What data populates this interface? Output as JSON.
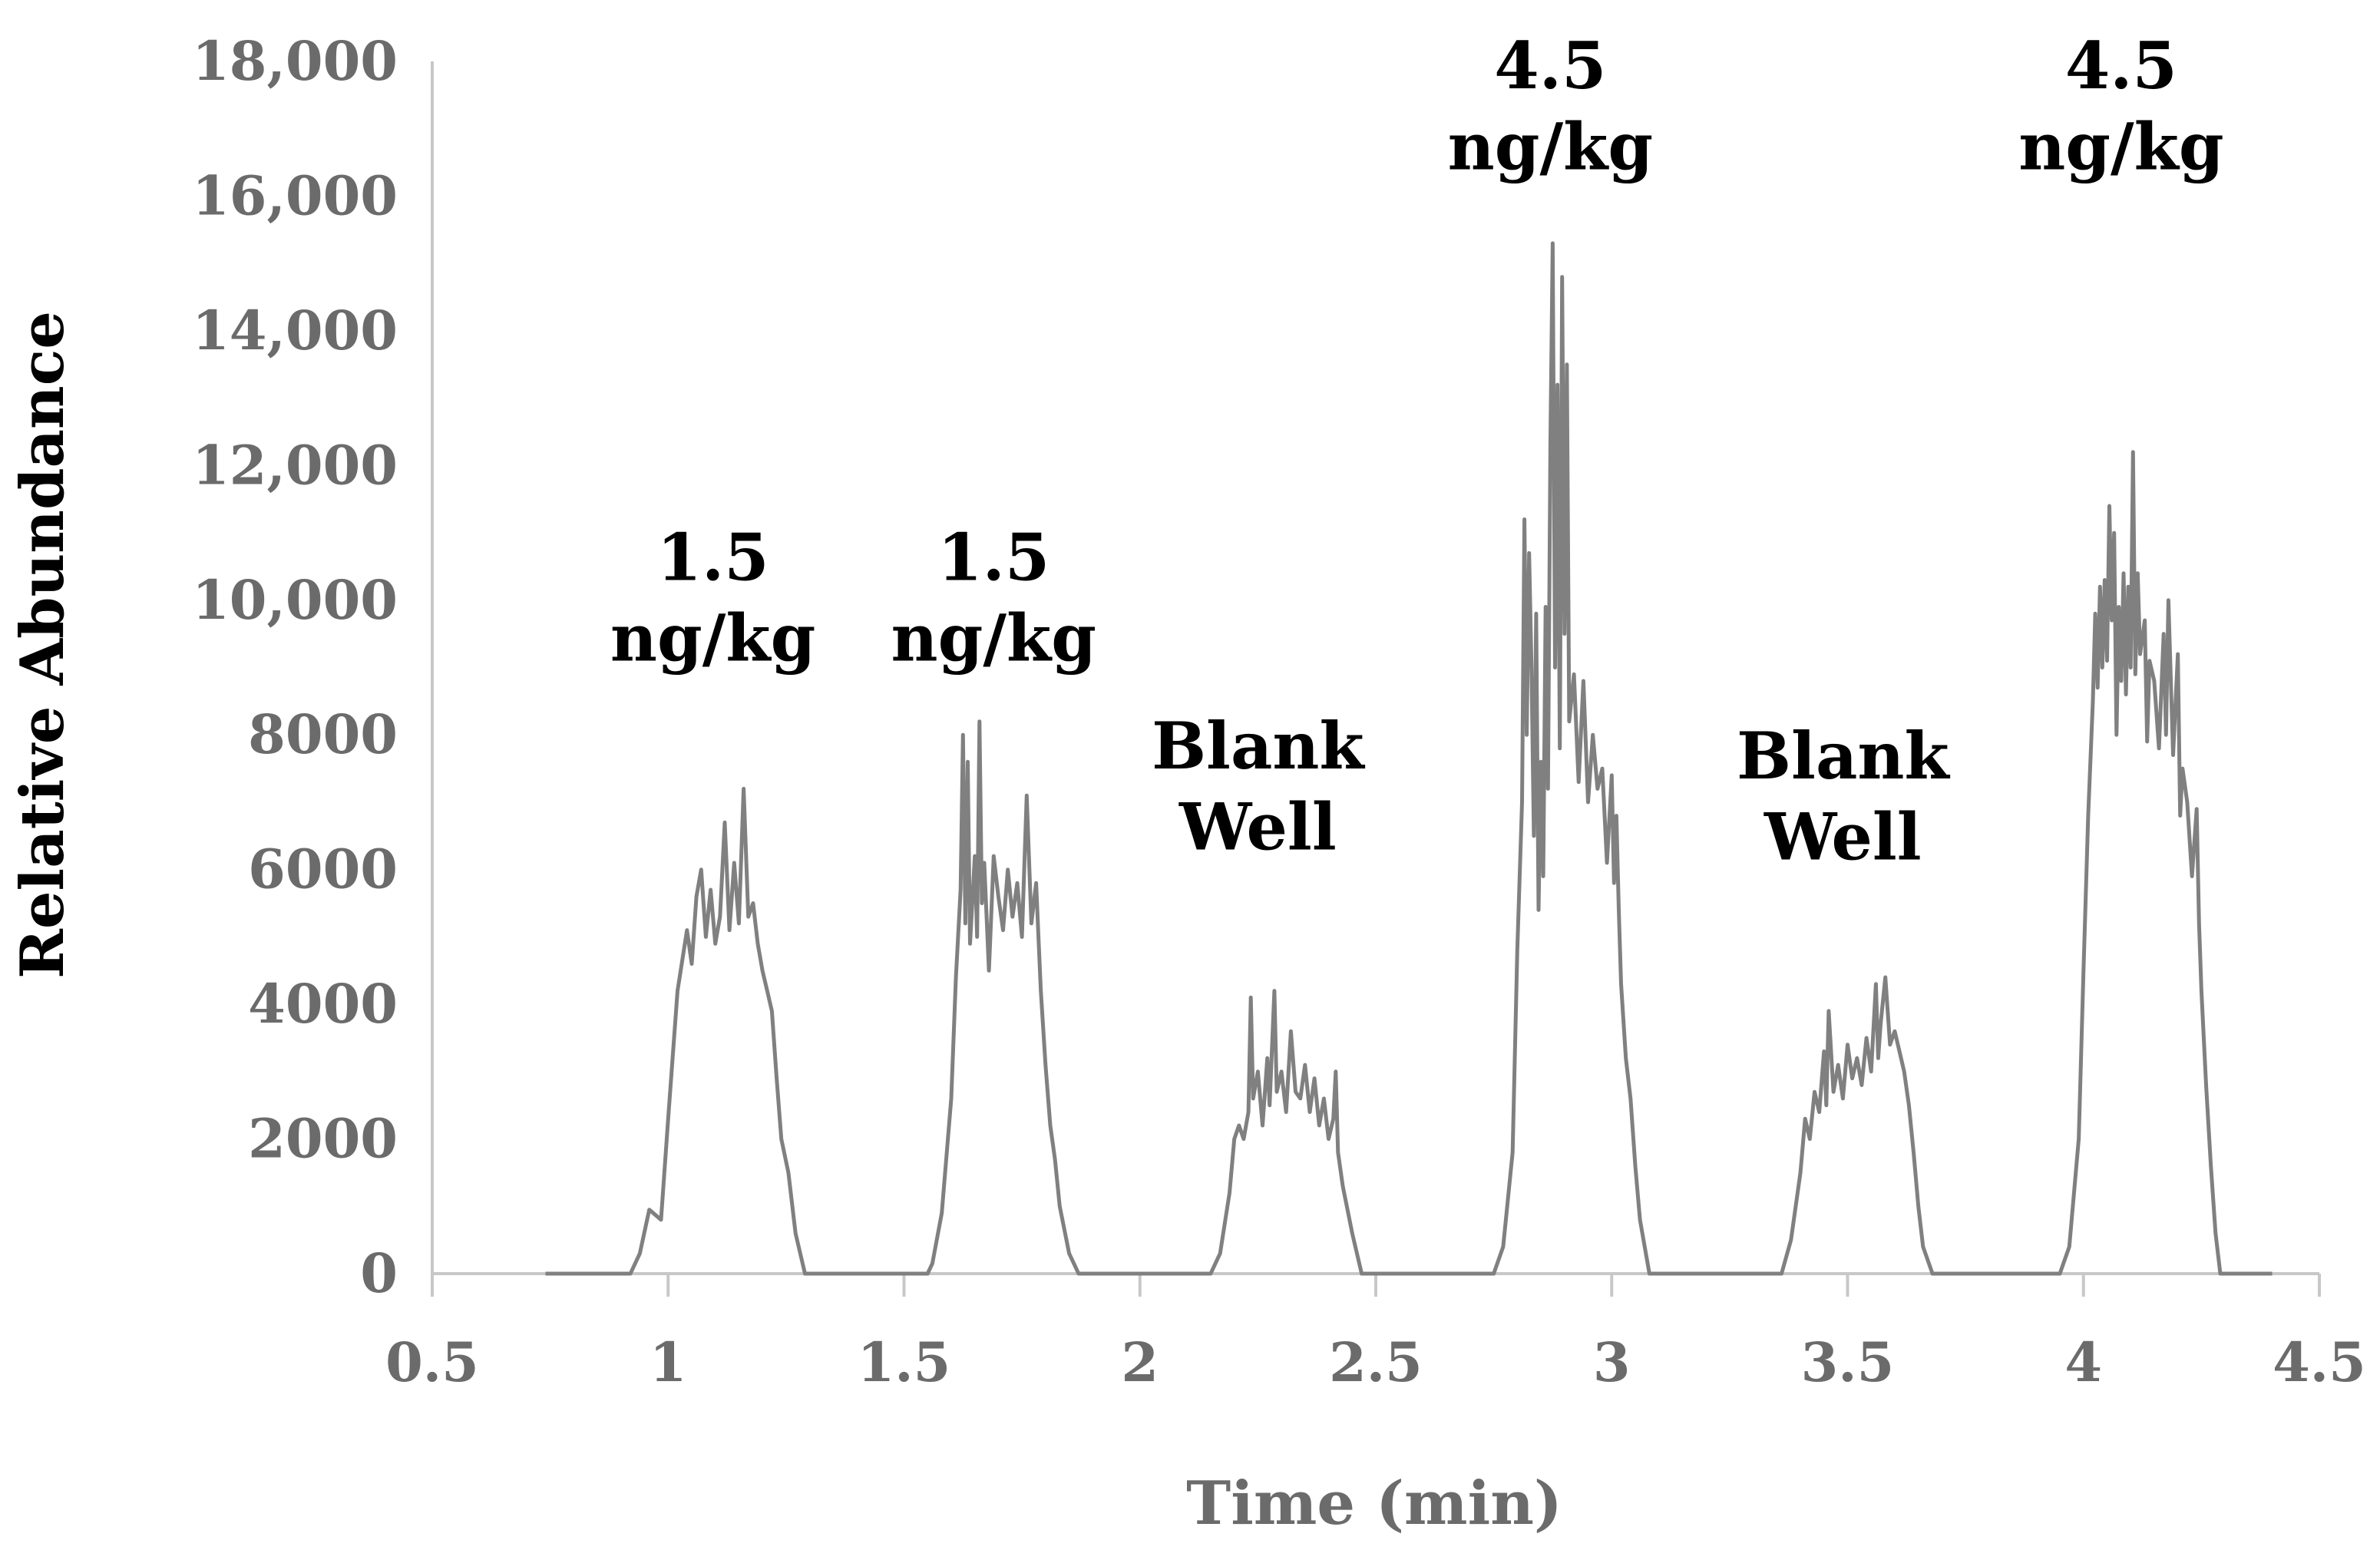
{
  "chart_data": {
    "type": "line",
    "title": "",
    "xlabel": "Time (min)",
    "ylabel": "Relative Abundance",
    "xlim": [
      0.5,
      4.5
    ],
    "ylim": [
      0,
      18000
    ],
    "xticks": [
      0.5,
      1,
      1.5,
      2,
      2.5,
      3,
      3.5,
      4,
      4.5
    ],
    "xtick_labels": [
      "0.5",
      "1",
      "1.5",
      "2",
      "2.5",
      "3",
      "3.5",
      "4",
      "4.5"
    ],
    "yticks": [
      0,
      2000,
      4000,
      6000,
      8000,
      10000,
      12000,
      14000,
      16000,
      18000
    ],
    "ytick_labels": [
      "0",
      "2000",
      "4000",
      "6000",
      "8000",
      "10,000",
      "12,000",
      "14,000",
      "16,000",
      "18,000"
    ],
    "grid": false,
    "series_color": "#808080",
    "series": [
      {
        "name": "Relative Abundance",
        "points": [
          [
            0.74,
            0
          ],
          [
            0.92,
            0
          ],
          [
            0.94,
            300
          ],
          [
            0.96,
            950
          ],
          [
            0.985,
            800
          ],
          [
            1.0,
            2300
          ],
          [
            1.02,
            4200
          ],
          [
            1.04,
            5100
          ],
          [
            1.05,
            4600
          ],
          [
            1.06,
            5600
          ],
          [
            1.07,
            6000
          ],
          [
            1.08,
            5000
          ],
          [
            1.09,
            5700
          ],
          [
            1.1,
            4900
          ],
          [
            1.11,
            5300
          ],
          [
            1.12,
            6700
          ],
          [
            1.13,
            5100
          ],
          [
            1.14,
            6100
          ],
          [
            1.15,
            5200
          ],
          [
            1.16,
            7200
          ],
          [
            1.17,
            5300
          ],
          [
            1.18,
            5500
          ],
          [
            1.19,
            4900
          ],
          [
            1.2,
            4500
          ],
          [
            1.21,
            4200
          ],
          [
            1.22,
            3900
          ],
          [
            1.23,
            2900
          ],
          [
            1.24,
            2000
          ],
          [
            1.255,
            1500
          ],
          [
            1.27,
            600
          ],
          [
            1.29,
            0
          ],
          [
            1.55,
            0
          ],
          [
            1.56,
            150
          ],
          [
            1.58,
            900
          ],
          [
            1.6,
            2600
          ],
          [
            1.61,
            4400
          ],
          [
            1.62,
            5700
          ],
          [
            1.625,
            8000
          ],
          [
            1.63,
            5200
          ],
          [
            1.635,
            7600
          ],
          [
            1.64,
            4900
          ],
          [
            1.65,
            6200
          ],
          [
            1.655,
            5000
          ],
          [
            1.66,
            8200
          ],
          [
            1.665,
            5500
          ],
          [
            1.67,
            6100
          ],
          [
            1.68,
            4500
          ],
          [
            1.69,
            6200
          ],
          [
            1.7,
            5600
          ],
          [
            1.71,
            5100
          ],
          [
            1.72,
            6000
          ],
          [
            1.73,
            5300
          ],
          [
            1.74,
            5800
          ],
          [
            1.75,
            5000
          ],
          [
            1.76,
            7100
          ],
          [
            1.77,
            5200
          ],
          [
            1.78,
            5800
          ],
          [
            1.785,
            5000
          ],
          [
            1.79,
            4200
          ],
          [
            1.8,
            3100
          ],
          [
            1.81,
            2200
          ],
          [
            1.82,
            1700
          ],
          [
            1.83,
            1000
          ],
          [
            1.85,
            300
          ],
          [
            1.87,
            0
          ],
          [
            2.15,
            0
          ],
          [
            2.17,
            300
          ],
          [
            2.19,
            1200
          ],
          [
            2.2,
            2000
          ],
          [
            2.21,
            2200
          ],
          [
            2.22,
            2000
          ],
          [
            2.23,
            2400
          ],
          [
            2.235,
            4100
          ],
          [
            2.24,
            2600
          ],
          [
            2.25,
            3000
          ],
          [
            2.26,
            2200
          ],
          [
            2.27,
            3200
          ],
          [
            2.275,
            2500
          ],
          [
            2.285,
            4200
          ],
          [
            2.29,
            2700
          ],
          [
            2.3,
            3000
          ],
          [
            2.31,
            2400
          ],
          [
            2.32,
            3600
          ],
          [
            2.33,
            2700
          ],
          [
            2.34,
            2600
          ],
          [
            2.35,
            3100
          ],
          [
            2.36,
            2400
          ],
          [
            2.37,
            2900
          ],
          [
            2.38,
            2200
          ],
          [
            2.39,
            2600
          ],
          [
            2.4,
            2000
          ],
          [
            2.41,
            2300
          ],
          [
            2.415,
            3000
          ],
          [
            2.42,
            1800
          ],
          [
            2.43,
            1300
          ],
          [
            2.45,
            600
          ],
          [
            2.47,
            0
          ],
          [
            2.75,
            0
          ],
          [
            2.77,
            400
          ],
          [
            2.79,
            1800
          ],
          [
            2.8,
            4800
          ],
          [
            2.81,
            7000
          ],
          [
            2.815,
            11200
          ],
          [
            2.82,
            8000
          ],
          [
            2.825,
            10700
          ],
          [
            2.83,
            9000
          ],
          [
            2.835,
            6500
          ],
          [
            2.84,
            9800
          ],
          [
            2.845,
            5400
          ],
          [
            2.85,
            7600
          ],
          [
            2.855,
            5900
          ],
          [
            2.86,
            9900
          ],
          [
            2.865,
            7200
          ],
          [
            2.87,
            12300
          ],
          [
            2.875,
            15300
          ],
          [
            2.88,
            9000
          ],
          [
            2.885,
            13200
          ],
          [
            2.89,
            7800
          ],
          [
            2.895,
            14800
          ],
          [
            2.9,
            9500
          ],
          [
            2.905,
            13500
          ],
          [
            2.91,
            8200
          ],
          [
            2.92,
            8900
          ],
          [
            2.93,
            7300
          ],
          [
            2.94,
            8800
          ],
          [
            2.95,
            7000
          ],
          [
            2.96,
            8000
          ],
          [
            2.97,
            7200
          ],
          [
            2.98,
            7500
          ],
          [
            2.99,
            6100
          ],
          [
            3.0,
            7400
          ],
          [
            3.005,
            5800
          ],
          [
            3.01,
            6800
          ],
          [
            3.015,
            5400
          ],
          [
            3.02,
            4300
          ],
          [
            3.03,
            3200
          ],
          [
            3.04,
            2600
          ],
          [
            3.05,
            1600
          ],
          [
            3.06,
            800
          ],
          [
            3.08,
            0
          ],
          [
            3.36,
            0
          ],
          [
            3.38,
            500
          ],
          [
            3.4,
            1500
          ],
          [
            3.41,
            2300
          ],
          [
            3.42,
            2000
          ],
          [
            3.43,
            2700
          ],
          [
            3.44,
            2400
          ],
          [
            3.45,
            3300
          ],
          [
            3.455,
            2500
          ],
          [
            3.46,
            3900
          ],
          [
            3.47,
            2700
          ],
          [
            3.48,
            3100
          ],
          [
            3.49,
            2600
          ],
          [
            3.5,
            3400
          ],
          [
            3.51,
            2900
          ],
          [
            3.52,
            3200
          ],
          [
            3.53,
            2800
          ],
          [
            3.54,
            3500
          ],
          [
            3.55,
            3000
          ],
          [
            3.56,
            4300
          ],
          [
            3.565,
            3200
          ],
          [
            3.57,
            3700
          ],
          [
            3.58,
            4400
          ],
          [
            3.59,
            3400
          ],
          [
            3.6,
            3600
          ],
          [
            3.61,
            3300
          ],
          [
            3.62,
            3000
          ],
          [
            3.63,
            2500
          ],
          [
            3.64,
            1800
          ],
          [
            3.65,
            1000
          ],
          [
            3.66,
            400
          ],
          [
            3.68,
            0
          ],
          [
            3.95,
            0
          ],
          [
            3.97,
            400
          ],
          [
            3.99,
            2000
          ],
          [
            4.0,
            4500
          ],
          [
            4.01,
            6800
          ],
          [
            4.02,
            8500
          ],
          [
            4.025,
            9800
          ],
          [
            4.03,
            8700
          ],
          [
            4.035,
            10200
          ],
          [
            4.04,
            9000
          ],
          [
            4.045,
            10300
          ],
          [
            4.05,
            9100
          ],
          [
            4.055,
            11400
          ],
          [
            4.06,
            9700
          ],
          [
            4.065,
            11000
          ],
          [
            4.07,
            8000
          ],
          [
            4.075,
            9900
          ],
          [
            4.08,
            8800
          ],
          [
            4.085,
            10400
          ],
          [
            4.09,
            8600
          ],
          [
            4.095,
            10200
          ],
          [
            4.1,
            9000
          ],
          [
            4.105,
            12200
          ],
          [
            4.11,
            8900
          ],
          [
            4.115,
            10400
          ],
          [
            4.12,
            9200
          ],
          [
            4.13,
            9700
          ],
          [
            4.135,
            7900
          ],
          [
            4.14,
            9100
          ],
          [
            4.15,
            8800
          ],
          [
            4.16,
            7800
          ],
          [
            4.17,
            9500
          ],
          [
            4.175,
            8000
          ],
          [
            4.18,
            10000
          ],
          [
            4.19,
            7700
          ],
          [
            4.2,
            9200
          ],
          [
            4.205,
            6800
          ],
          [
            4.21,
            7500
          ],
          [
            4.22,
            7000
          ],
          [
            4.23,
            5900
          ],
          [
            4.24,
            6900
          ],
          [
            4.245,
            5200
          ],
          [
            4.25,
            4200
          ],
          [
            4.26,
            2800
          ],
          [
            4.27,
            1600
          ],
          [
            4.28,
            600
          ],
          [
            4.29,
            0
          ],
          [
            4.4,
            0
          ]
        ]
      }
    ],
    "annotations": [
      {
        "line1": "1.5",
        "line2": "ng/kg",
        "x": 1.095,
        "y1": 10300,
        "y2": 9100
      },
      {
        "line1": "1.5",
        "line2": "ng/kg",
        "x": 1.69,
        "y1": 10300,
        "y2": 9100
      },
      {
        "line1": "Blank",
        "line2": "Well",
        "x": 2.25,
        "y1": 7500,
        "y2": 6300
      },
      {
        "line1": "4.5",
        "line2": "ng/kg",
        "x": 2.87,
        "y1": 17600,
        "y2": 16400
      },
      {
        "line1": "Blank",
        "line2": "Well",
        "x": 3.49,
        "y1": 7350,
        "y2": 6150
      },
      {
        "line1": "4.5",
        "line2": "ng/kg",
        "x": 4.08,
        "y1": 17600,
        "y2": 16400
      }
    ]
  }
}
